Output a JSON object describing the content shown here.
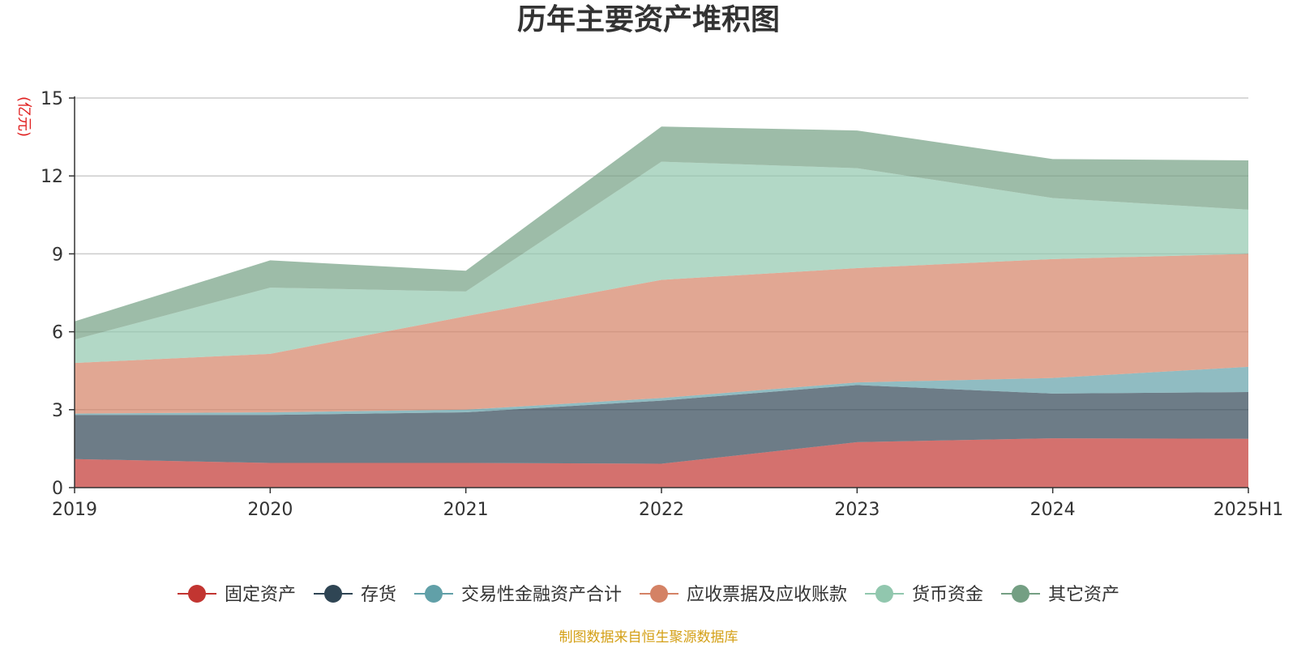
{
  "chart_data": {
    "type": "area",
    "stacked": true,
    "title": "历年主要资产堆积图",
    "unit_label": "(亿元)",
    "x": [
      "2019",
      "2020",
      "2021",
      "2022",
      "2023",
      "2024",
      "2025H1"
    ],
    "ylim": [
      0,
      15
    ],
    "yticks": [
      "0",
      "3",
      "6",
      "9",
      "12",
      "15"
    ],
    "grid": true,
    "legend_position": "bottom",
    "series": [
      {
        "name": "固定资产",
        "color": "#c23531",
        "values": [
          1.1,
          0.95,
          0.95,
          0.92,
          1.75,
          1.9,
          1.88
        ]
      },
      {
        "name": "存货",
        "color": "#2f4554",
        "values": [
          1.7,
          1.85,
          1.95,
          2.43,
          2.2,
          1.72,
          1.8
        ]
      },
      {
        "name": "交易性金融资产合计",
        "color": "#61a0a8",
        "values": [
          0.05,
          0.1,
          0.1,
          0.1,
          0.1,
          0.6,
          0.97
        ]
      },
      {
        "name": "应收票据及应收账款",
        "color": "#d48265",
        "values": [
          1.95,
          2.25,
          3.6,
          4.55,
          4.4,
          4.58,
          4.35
        ]
      },
      {
        "name": "货币资金",
        "color": "#91c7ae",
        "values": [
          0.9,
          2.55,
          0.95,
          4.55,
          3.85,
          2.35,
          1.7
        ]
      },
      {
        "name": "其它资产",
        "color": "#749f83",
        "values": [
          0.7,
          1.05,
          0.8,
          1.35,
          1.45,
          1.5,
          1.9
        ]
      }
    ],
    "source": "制图数据来自恒生聚源数据库"
  }
}
